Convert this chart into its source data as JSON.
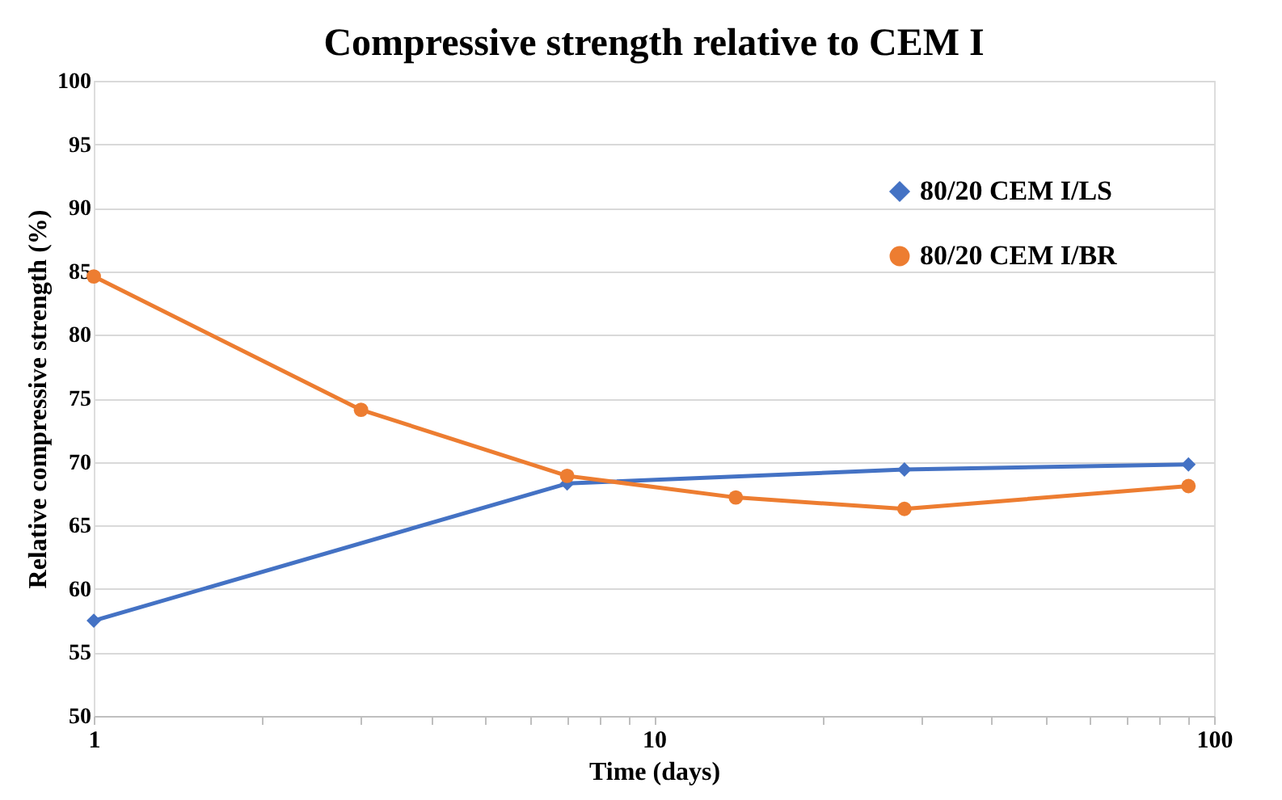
{
  "chart_data": {
    "type": "line",
    "title": "Compressive strength relative to CEM I",
    "xlabel": "Time (days)",
    "ylabel": "Relative compressive strength (%)",
    "series": [
      {
        "name": "80/20 CEM I/LS",
        "color": "#4472c4",
        "marker": "diamond",
        "x": [
          1,
          7,
          28,
          90
        ],
        "values": [
          57.5,
          68.3,
          69.4,
          69.8
        ]
      },
      {
        "name": "80/20 CEM I/BR",
        "color": "#ed7d31",
        "marker": "circle",
        "x": [
          1,
          3,
          7,
          14,
          28,
          90
        ],
        "values": [
          84.6,
          74.1,
          68.9,
          67.2,
          66.3,
          68.1
        ]
      }
    ],
    "log": "x",
    "xlim": [
      1,
      100
    ],
    "xticks": [
      1,
      {
        "value": 2,
        "label": null
      },
      {
        "value": 3,
        "label": null
      },
      {
        "value": 4,
        "label": null
      },
      {
        "value": 5,
        "label": null
      },
      {
        "value": 6,
        "label": null
      },
      {
        "value": 7,
        "label": null
      },
      {
        "value": 8,
        "label": null
      },
      {
        "value": 9,
        "label": null
      },
      10,
      {
        "value": 20,
        "label": null
      },
      {
        "value": 30,
        "label": null
      },
      {
        "value": 40,
        "label": null
      },
      {
        "value": 50,
        "label": null
      },
      {
        "value": 60,
        "label": null
      },
      {
        "value": 70,
        "label": null
      },
      {
        "value": 80,
        "label": null
      },
      {
        "value": 90,
        "label": null
      },
      100
    ],
    "ylim": [
      50,
      100
    ],
    "yticks": [
      50,
      55,
      60,
      65,
      70,
      75,
      80,
      85,
      90,
      95,
      100
    ],
    "grid": "y",
    "legend": "top right",
    "line_style": "solid"
  }
}
